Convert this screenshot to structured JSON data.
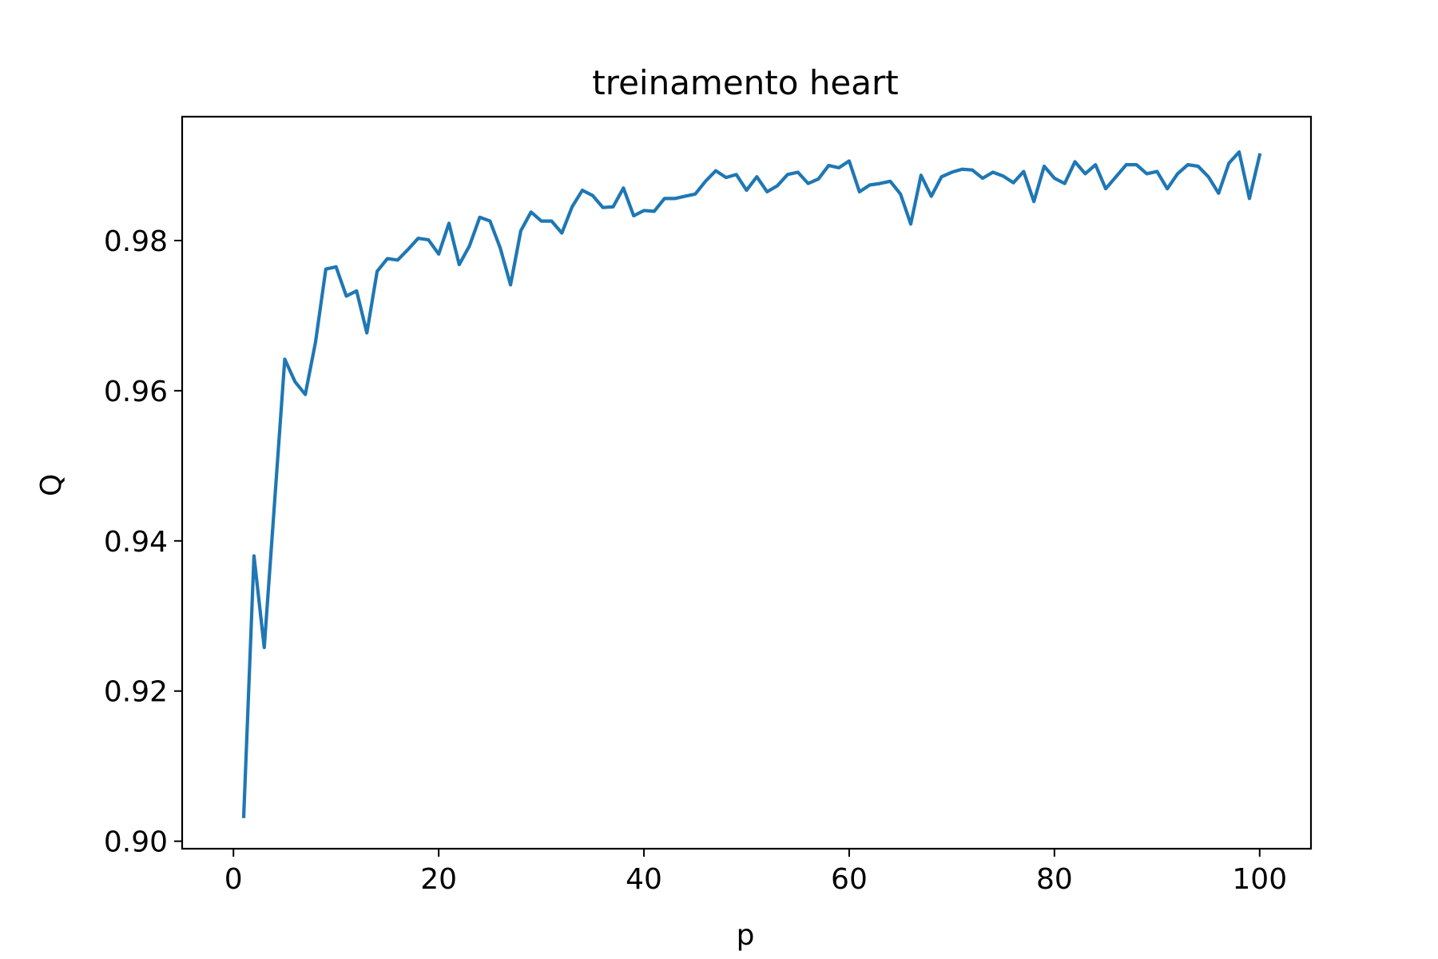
{
  "chart_data": {
    "type": "line",
    "title": "treinamento heart",
    "xlabel": "p",
    "ylabel": "Q",
    "xlim": [
      -5,
      105
    ],
    "ylim": [
      0.899,
      0.9965
    ],
    "xticks": [
      0,
      20,
      40,
      60,
      80,
      100
    ],
    "xtick_labels": [
      "0",
      "20",
      "40",
      "60",
      "80",
      "100"
    ],
    "yticks": [
      0.9,
      0.92,
      0.94,
      0.96,
      0.98
    ],
    "ytick_labels": [
      "0.90",
      "0.92",
      "0.94",
      "0.96",
      "0.98"
    ],
    "grid": false,
    "series": [
      {
        "color": "#1f77b4",
        "x": [
          1,
          2,
          3,
          4,
          5,
          6,
          7,
          8,
          9,
          10,
          11,
          12,
          13,
          14,
          15,
          16,
          17,
          18,
          19,
          20,
          21,
          22,
          23,
          24,
          25,
          26,
          27,
          28,
          29,
          30,
          31,
          32,
          33,
          34,
          35,
          36,
          37,
          38,
          39,
          40,
          41,
          42,
          43,
          44,
          45,
          46,
          47,
          48,
          49,
          50,
          51,
          52,
          53,
          54,
          55,
          56,
          57,
          58,
          59,
          60,
          61,
          62,
          63,
          64,
          65,
          66,
          67,
          68,
          69,
          70,
          71,
          72,
          73,
          74,
          75,
          76,
          77,
          78,
          79,
          80,
          81,
          82,
          83,
          84,
          85,
          86,
          87,
          88,
          89,
          90,
          91,
          92,
          93,
          94,
          95,
          96,
          97,
          98,
          99,
          100
        ],
        "values": [
          0.9033,
          0.938,
          0.9258,
          0.945,
          0.9642,
          0.9612,
          0.9595,
          0.9665,
          0.9762,
          0.9765,
          0.9726,
          0.9733,
          0.9677,
          0.9759,
          0.9776,
          0.9774,
          0.9788,
          0.9803,
          0.9801,
          0.9782,
          0.9823,
          0.9768,
          0.9793,
          0.9831,
          0.9826,
          0.979,
          0.9741,
          0.9813,
          0.9838,
          0.9826,
          0.9826,
          0.981,
          0.9845,
          0.9867,
          0.986,
          0.9844,
          0.9845,
          0.987,
          0.9833,
          0.984,
          0.9839,
          0.9856,
          0.9856,
          0.9859,
          0.9862,
          0.9879,
          0.9893,
          0.9884,
          0.9888,
          0.9867,
          0.9885,
          0.9865,
          0.9873,
          0.9888,
          0.9891,
          0.9876,
          0.9882,
          0.99,
          0.9897,
          0.9906,
          0.9865,
          0.9874,
          0.9876,
          0.9879,
          0.9862,
          0.9822,
          0.9887,
          0.9859,
          0.9885,
          0.9891,
          0.9895,
          0.9894,
          0.9883,
          0.9891,
          0.9886,
          0.9877,
          0.9892,
          0.9852,
          0.9899,
          0.9883,
          0.9876,
          0.9905,
          0.9889,
          0.9901,
          0.9869,
          0.9885,
          0.9901,
          0.9901,
          0.9889,
          0.9892,
          0.9869,
          0.9889,
          0.9901,
          0.9899,
          0.9885,
          0.9863,
          0.9903,
          0.9918,
          0.9856,
          0.9914
        ]
      }
    ]
  }
}
